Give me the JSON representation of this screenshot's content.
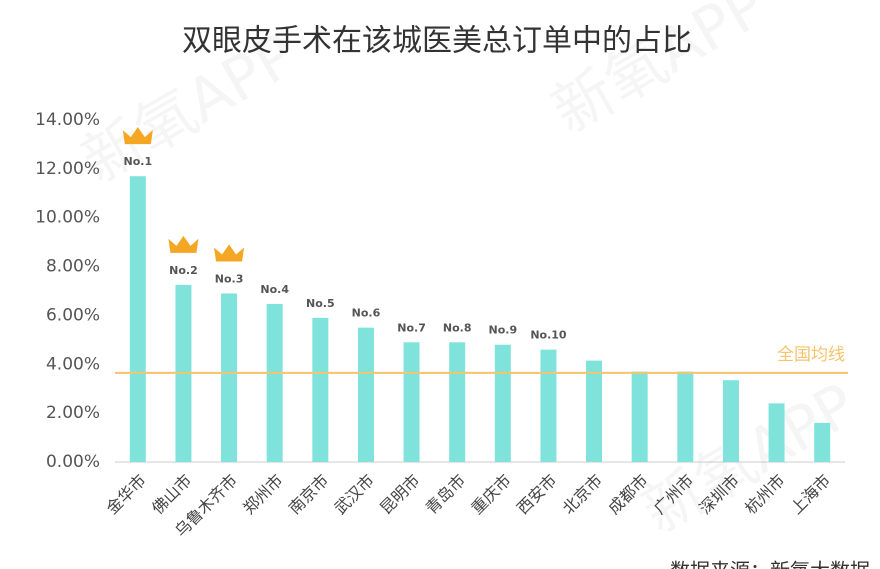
{
  "chart_data": {
    "type": "bar",
    "title": "双眼皮手术在该城医美总订单中的占比",
    "categories": [
      "金华市",
      "佛山市",
      "乌鲁木齐市",
      "郑州市",
      "南京市",
      "武汉市",
      "昆明市",
      "青岛市",
      "重庆市",
      "西安市",
      "北京市",
      "成都市",
      "广州市",
      "深圳市",
      "杭州市",
      "上海市"
    ],
    "values": [
      11.7,
      7.25,
      6.9,
      6.47,
      5.9,
      5.5,
      4.9,
      4.9,
      4.8,
      4.6,
      4.15,
      3.7,
      3.7,
      3.35,
      2.4,
      1.6
    ],
    "color": "#7fe3dc",
    "rank_labels": [
      "No.1",
      "No.2",
      "No.3",
      "No.4",
      "No.5",
      "No.6",
      "No.7",
      "No.8",
      "No.9",
      "No.10"
    ],
    "average": {
      "value": 3.65,
      "label": "全国均线",
      "color": "#f7c36b"
    },
    "ylim": [
      0,
      14
    ],
    "yticks": [
      {
        "value": 0,
        "label": "0.00%"
      },
      {
        "value": 2,
        "label": "2.00%"
      },
      {
        "value": 4,
        "label": "4.00%"
      },
      {
        "value": 6,
        "label": "6.00%"
      },
      {
        "value": 8,
        "label": "8.00%"
      },
      {
        "value": 10,
        "label": "10.00%"
      },
      {
        "value": 12,
        "label": "12.00%"
      },
      {
        "value": 14,
        "label": "14.00%"
      }
    ],
    "grid": false,
    "watermark": "新氧APP",
    "source": "数据来源：新氧大数据"
  }
}
